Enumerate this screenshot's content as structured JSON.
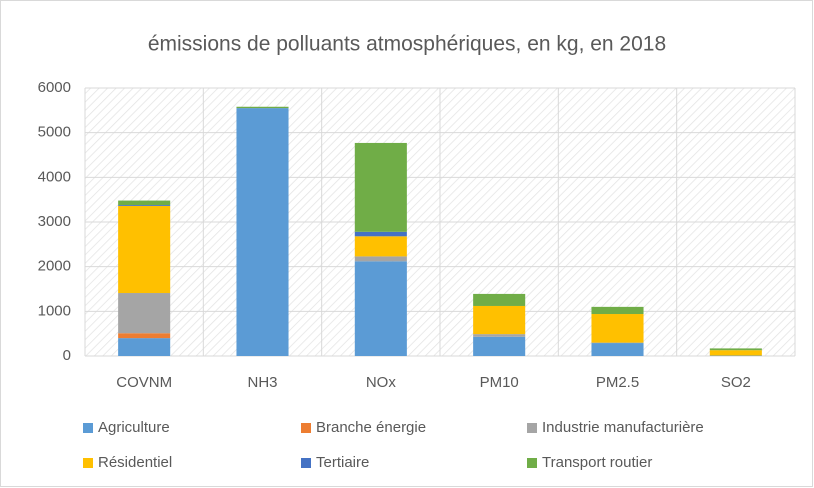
{
  "chart_data": {
    "type": "stacked_bar",
    "title": "émissions de polluants atmosphériques, en kg, en 2018",
    "categories": [
      "COVNM",
      "NH3",
      "NOx",
      "PM10",
      "PM2.5",
      "SO2"
    ],
    "series": [
      {
        "name": "Agriculture",
        "color": "#5b9bd5",
        "values": [
          400,
          5550,
          2120,
          430,
          290,
          10
        ]
      },
      {
        "name": "Branche énergie",
        "color": "#ed7d31",
        "values": [
          110,
          0,
          0,
          0,
          0,
          0
        ]
      },
      {
        "name": "Industrie manufacturière",
        "color": "#a5a5a5",
        "values": [
          900,
          0,
          110,
          60,
          10,
          0
        ]
      },
      {
        "name": "Résidentiel",
        "color": "#ffc000",
        "values": [
          1950,
          0,
          450,
          630,
          640,
          120
        ]
      },
      {
        "name": "Tertiaire",
        "color": "#4472c4",
        "values": [
          20,
          0,
          100,
          0,
          0,
          0
        ]
      },
      {
        "name": "Transport routier",
        "color": "#70ad47",
        "values": [
          100,
          30,
          1990,
          270,
          160,
          40
        ]
      }
    ],
    "ylim": [
      0,
      6000
    ],
    "yticks": [
      0,
      1000,
      2000,
      3000,
      4000,
      5000,
      6000
    ],
    "grid": true,
    "legend": "bottom"
  }
}
